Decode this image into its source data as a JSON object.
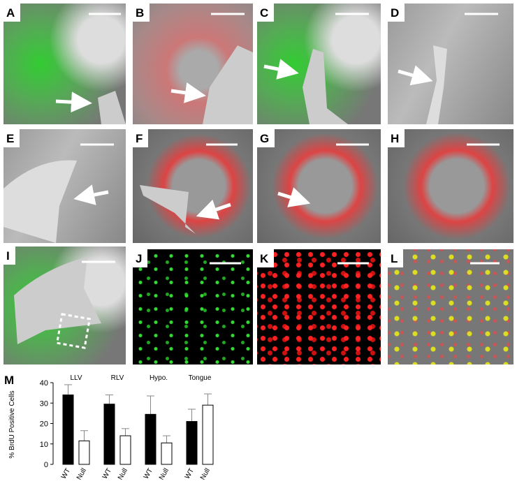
{
  "panels": [
    "A",
    "B",
    "C",
    "D",
    "E",
    "F",
    "G",
    "H",
    "I",
    "J",
    "K",
    "L"
  ],
  "chart_panel": "M",
  "chart_data": {
    "type": "bar",
    "ylabel": "% BrdU Positive Cells",
    "categories": [
      "LLV",
      "RLV",
      "Hypo.",
      "Tongue"
    ],
    "series": [
      {
        "name": "WT",
        "color": "#000000",
        "values": [
          34,
          29.5,
          24.5,
          21
        ],
        "errors": [
          5,
          4.5,
          9,
          6
        ]
      },
      {
        "name": "Null",
        "color": "#ffffff",
        "values": [
          11.5,
          14,
          10.5,
          29
        ],
        "errors": [
          5,
          3.5,
          3.5,
          5.5
        ]
      }
    ],
    "ylim": [
      0,
      40
    ],
    "yticks": [
      0,
      10,
      20,
      30,
      40
    ]
  }
}
